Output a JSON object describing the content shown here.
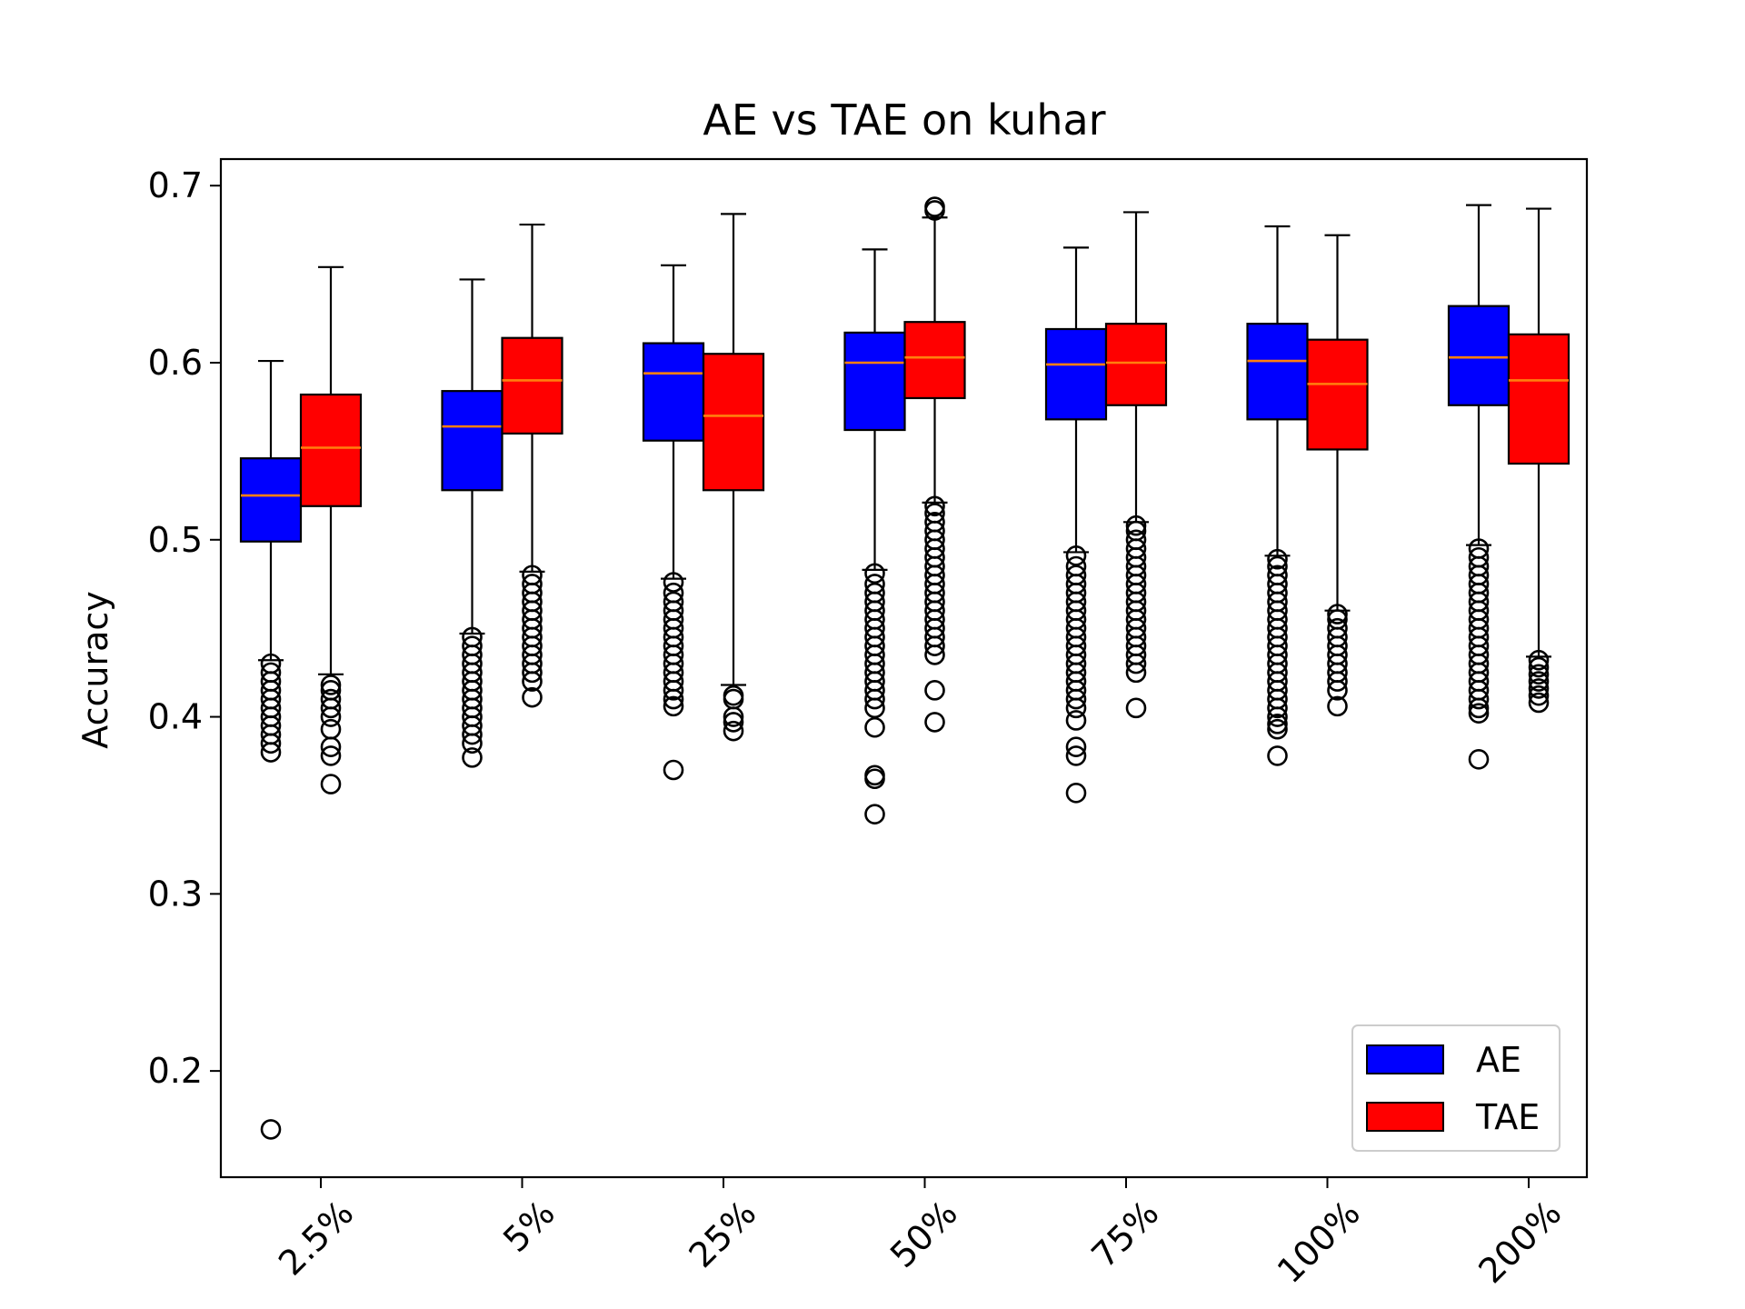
{
  "chart_data": {
    "type": "box",
    "title": "AE vs TAE on kuhar",
    "xlabel": "",
    "ylabel": "Accuracy",
    "ylim": [
      0.14,
      0.715
    ],
    "yticks": [
      0.2,
      0.3,
      0.4,
      0.5,
      0.6,
      0.7
    ],
    "ytick_labels": [
      "0.2",
      "0.3",
      "0.4",
      "0.5",
      "0.6",
      "0.7"
    ],
    "categories": [
      "2.5%",
      "5%",
      "25%",
      "50%",
      "75%",
      "100%",
      "200%"
    ],
    "grid": false,
    "legend_position": "bottom-right",
    "series": [
      {
        "name": "AE",
        "color": "#0000ff",
        "boxes": [
          {
            "q1": 0.499,
            "median": 0.525,
            "q3": 0.546,
            "whisker_low": 0.432,
            "whisker_high": 0.601,
            "outliers": [
              0.43,
              0.425,
              0.42,
              0.415,
              0.41,
              0.405,
              0.4,
              0.395,
              0.39,
              0.385,
              0.38,
              0.167
            ]
          },
          {
            "q1": 0.528,
            "median": 0.564,
            "q3": 0.584,
            "whisker_low": 0.447,
            "whisker_high": 0.647,
            "outliers": [
              0.445,
              0.44,
              0.435,
              0.43,
              0.425,
              0.42,
              0.415,
              0.41,
              0.405,
              0.4,
              0.395,
              0.39,
              0.385,
              0.377
            ]
          },
          {
            "q1": 0.556,
            "median": 0.594,
            "q3": 0.611,
            "whisker_low": 0.478,
            "whisker_high": 0.655,
            "outliers": [
              0.476,
              0.47,
              0.465,
              0.46,
              0.455,
              0.45,
              0.445,
              0.44,
              0.435,
              0.43,
              0.425,
              0.42,
              0.415,
              0.41,
              0.406,
              0.37
            ]
          },
          {
            "q1": 0.562,
            "median": 0.6,
            "q3": 0.617,
            "whisker_low": 0.483,
            "whisker_high": 0.664,
            "outliers": [
              0.481,
              0.475,
              0.47,
              0.465,
              0.46,
              0.455,
              0.45,
              0.445,
              0.44,
              0.435,
              0.43,
              0.425,
              0.42,
              0.415,
              0.41,
              0.405,
              0.394,
              0.367,
              0.365,
              0.345
            ]
          },
          {
            "q1": 0.568,
            "median": 0.599,
            "q3": 0.619,
            "whisker_low": 0.493,
            "whisker_high": 0.665,
            "outliers": [
              0.491,
              0.485,
              0.48,
              0.475,
              0.47,
              0.465,
              0.46,
              0.455,
              0.45,
              0.445,
              0.44,
              0.435,
              0.43,
              0.425,
              0.42,
              0.415,
              0.41,
              0.405,
              0.398,
              0.383,
              0.378,
              0.357
            ]
          },
          {
            "q1": 0.568,
            "median": 0.601,
            "q3": 0.622,
            "whisker_low": 0.491,
            "whisker_high": 0.677,
            "outliers": [
              0.489,
              0.485,
              0.48,
              0.475,
              0.47,
              0.465,
              0.46,
              0.455,
              0.45,
              0.445,
              0.44,
              0.435,
              0.43,
              0.425,
              0.42,
              0.415,
              0.41,
              0.405,
              0.4,
              0.396,
              0.393,
              0.378
            ]
          },
          {
            "q1": 0.576,
            "median": 0.603,
            "q3": 0.632,
            "whisker_low": 0.497,
            "whisker_high": 0.689,
            "outliers": [
              0.495,
              0.49,
              0.485,
              0.48,
              0.475,
              0.47,
              0.465,
              0.46,
              0.455,
              0.45,
              0.445,
              0.44,
              0.435,
              0.43,
              0.425,
              0.42,
              0.415,
              0.41,
              0.405,
              0.402,
              0.376
            ]
          }
        ]
      },
      {
        "name": "TAE",
        "color": "#ff0000",
        "boxes": [
          {
            "q1": 0.519,
            "median": 0.552,
            "q3": 0.582,
            "whisker_low": 0.424,
            "whisker_high": 0.654,
            "outliers": [
              0.418,
              0.415,
              0.41,
              0.405,
              0.4,
              0.393,
              0.383,
              0.378,
              0.362
            ]
          },
          {
            "q1": 0.56,
            "median": 0.59,
            "q3": 0.614,
            "whisker_low": 0.482,
            "whisker_high": 0.678,
            "outliers": [
              0.48,
              0.475,
              0.47,
              0.465,
              0.46,
              0.455,
              0.45,
              0.445,
              0.44,
              0.435,
              0.43,
              0.425,
              0.42,
              0.411
            ]
          },
          {
            "q1": 0.528,
            "median": 0.57,
            "q3": 0.605,
            "whisker_low": 0.418,
            "whisker_high": 0.684,
            "outliers": [
              0.412,
              0.41,
              0.4,
              0.397,
              0.392
            ]
          },
          {
            "q1": 0.58,
            "median": 0.603,
            "q3": 0.623,
            "whisker_low": 0.521,
            "whisker_high": 0.682,
            "outliers": [
              0.688,
              0.686,
              0.519,
              0.515,
              0.51,
              0.505,
              0.5,
              0.495,
              0.49,
              0.485,
              0.48,
              0.475,
              0.47,
              0.465,
              0.46,
              0.455,
              0.45,
              0.445,
              0.44,
              0.435,
              0.415,
              0.397
            ]
          },
          {
            "q1": 0.576,
            "median": 0.6,
            "q3": 0.622,
            "whisker_low": 0.51,
            "whisker_high": 0.685,
            "outliers": [
              0.508,
              0.505,
              0.5,
              0.495,
              0.49,
              0.485,
              0.48,
              0.475,
              0.47,
              0.465,
              0.46,
              0.455,
              0.45,
              0.445,
              0.44,
              0.435,
              0.43,
              0.425,
              0.405
            ]
          },
          {
            "q1": 0.551,
            "median": 0.588,
            "q3": 0.613,
            "whisker_low": 0.46,
            "whisker_high": 0.672,
            "outliers": [
              0.458,
              0.455,
              0.45,
              0.445,
              0.44,
              0.435,
              0.43,
              0.425,
              0.42,
              0.415,
              0.406
            ]
          },
          {
            "q1": 0.543,
            "median": 0.59,
            "q3": 0.616,
            "whisker_low": 0.434,
            "whisker_high": 0.687,
            "outliers": [
              0.432,
              0.428,
              0.424,
              0.42,
              0.416,
              0.412,
              0.408
            ]
          }
        ]
      }
    ]
  }
}
